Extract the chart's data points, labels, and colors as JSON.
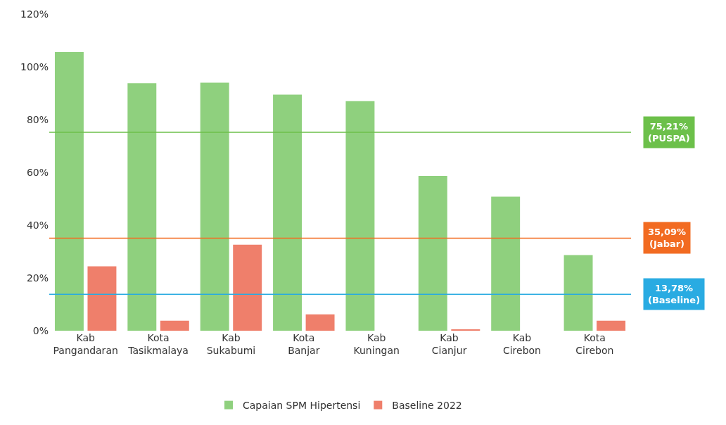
{
  "chart_data": {
    "type": "bar",
    "categories": [
      "Kab\nPangandaran",
      "Kota\nTasikmalaya",
      "Kab\nSukabumi",
      "Kota\nBanjar",
      "Kab\nKuningan",
      "Kab\nCianjur",
      "Kab\nCirebon",
      "Kota\nCirebon"
    ],
    "series": [
      {
        "name": "Capaian SPM Hipertensi",
        "color": "#8fd07e",
        "values": [
          105.6,
          93.8,
          94,
          89.5,
          87,
          58.7,
          50.8,
          28.7
        ]
      },
      {
        "name": "Baseline 2022",
        "color": "#ef7f6b",
        "values": [
          24.4,
          3.8,
          32.6,
          6.2,
          null,
          0.5,
          null,
          3.8
        ]
      }
    ],
    "ylim": [
      0,
      120
    ],
    "yticks": [
      {
        "value": 0,
        "label": "0%"
      },
      {
        "value": 20,
        "label": "20%"
      },
      {
        "value": 40,
        "label": "40%"
      },
      {
        "value": 60,
        "label": "60%"
      },
      {
        "value": 80,
        "label": "80%"
      },
      {
        "value": 100,
        "label": "100%"
      },
      {
        "value": 120,
        "label": "120%"
      }
    ],
    "ref_lines": [
      {
        "axis": "y",
        "value": 75.21,
        "label": "75,21%\n(PUSPA)",
        "color": "#6cc04a"
      },
      {
        "axis": "y",
        "value": 35.09,
        "label": "35,09%\n(Jabar)",
        "color": "#f26b21"
      },
      {
        "axis": "y",
        "value": 13.78,
        "label": "13,78%\n(Baseline)",
        "color": "#29abe2"
      }
    ],
    "grid": false,
    "legend": "bottom"
  }
}
